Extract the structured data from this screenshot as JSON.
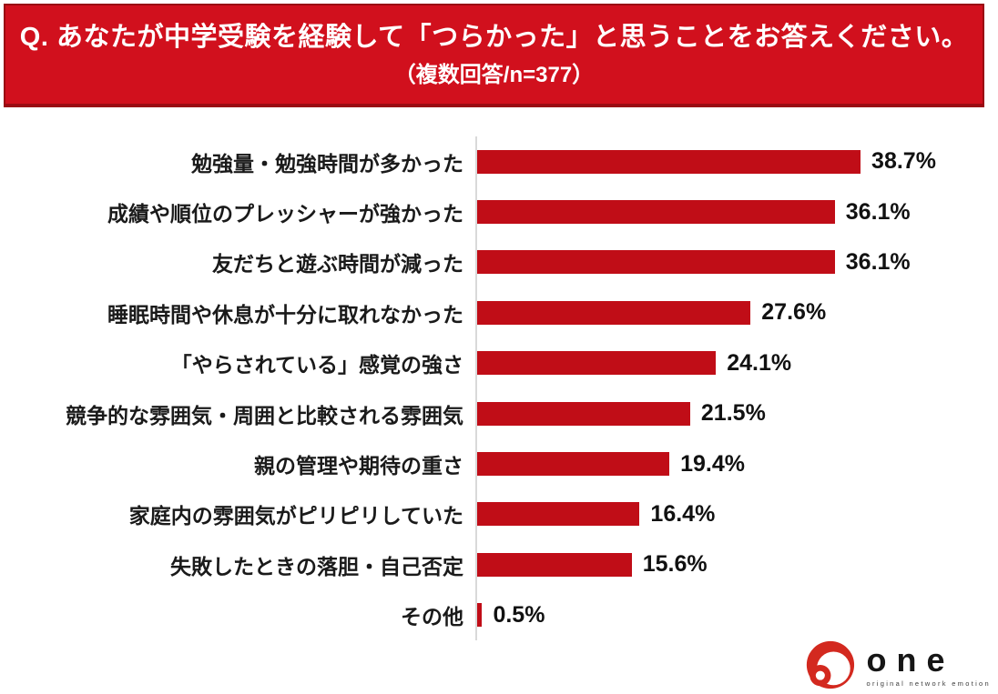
{
  "header": {
    "title": "Q. あなたが中学受験を経験して「つらかった」と思うことをお答えください。",
    "subtitle": "（複数回答/n=377）"
  },
  "chart_data": {
    "type": "bar",
    "orientation": "horizontal",
    "title": "あなたが中学受験を経験して「つらかった」と思うこと",
    "sample_note": "複数回答/n=377",
    "categories": [
      "勉強量・勉強時間が多かった",
      "成績や順位のプレッシャーが強かった",
      "友だちと遊ぶ時間が減った",
      "睡眠時間や休息が十分に取れなかった",
      "「やらされている」感覚の強さ",
      "競争的な雰囲気・周囲と比較される雰囲気",
      "親の管理や期待の重さ",
      "家庭内の雰囲気がピリピリしていた",
      "失敗したときの落胆・自己否定",
      "その他"
    ],
    "values": [
      38.7,
      36.1,
      36.1,
      27.6,
      24.1,
      21.5,
      19.4,
      16.4,
      15.6,
      0.5
    ],
    "value_labels": [
      "38.7%",
      "36.1%",
      "36.1%",
      "27.6%",
      "24.1%",
      "21.5%",
      "19.4%",
      "16.4%",
      "15.6%",
      "0.5%"
    ],
    "unit": "%",
    "xlim": [
      0,
      45
    ],
    "grid": false,
    "legend": "none"
  },
  "colors": {
    "banner_bg": "#d1101d",
    "banner_border": "#9a0b13",
    "bar": "#c00d17",
    "axis_line": "#d9d9d9",
    "logo_red": "#d3291f"
  },
  "logo": {
    "name": "one",
    "tagline": "original network emotion"
  }
}
